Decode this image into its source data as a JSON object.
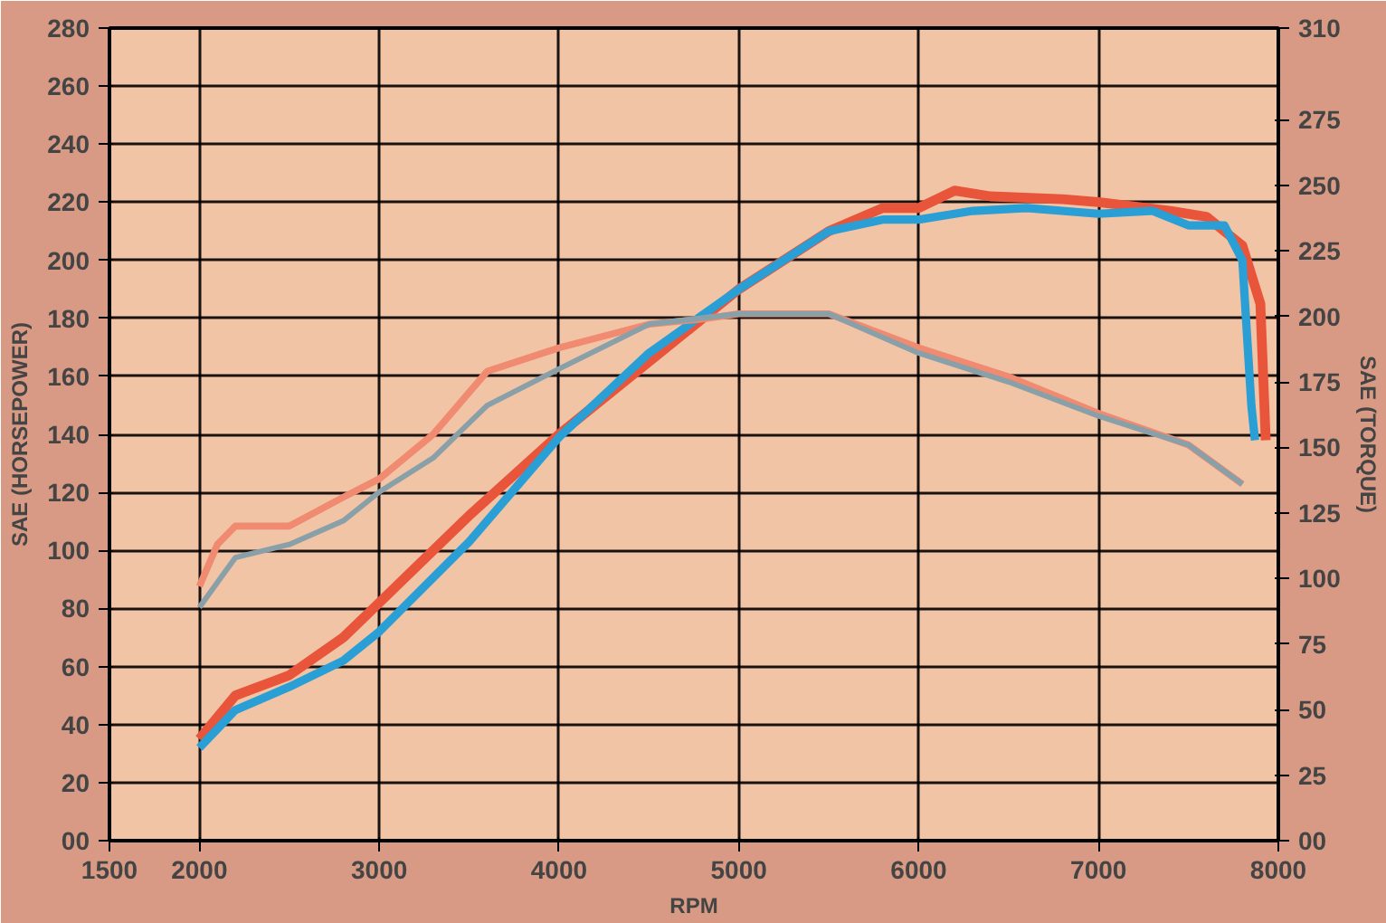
{
  "chart_data": {
    "type": "line",
    "xlabel": "RPM",
    "ylabel": "SAE (HORSEPOWER)",
    "y2label": "SAE (TORQUE)",
    "xlim": [
      1500,
      8000
    ],
    "xticks": [
      1500,
      2000,
      3000,
      4000,
      5000,
      6000,
      7000,
      8000
    ],
    "ylim": [
      0,
      280
    ],
    "yticks": [
      {
        "value": 0,
        "label": "00"
      },
      20,
      40,
      60,
      80,
      100,
      120,
      140,
      160,
      180,
      200,
      220,
      240,
      260,
      280
    ],
    "y2lim": [
      0,
      310
    ],
    "y2ticks": [
      {
        "value": 0,
        "label": "00"
      },
      25,
      50,
      75,
      100,
      125,
      150,
      175,
      200,
      225,
      250,
      275,
      310
    ],
    "grid": true,
    "line_style": "solid",
    "series": [
      {
        "color": "#e8553a",
        "x": [
          2000,
          2200,
          2500,
          2800,
          3000,
          3500,
          4000,
          4500,
          5000,
          5500,
          5800,
          6000,
          6200,
          6400,
          6800,
          7000,
          7400,
          7600,
          7800,
          7900,
          7930
        ],
        "values": [
          35,
          50,
          57,
          70,
          82,
          112,
          140,
          165,
          190,
          210,
          218,
          218,
          224,
          222,
          221,
          220,
          217,
          215,
          205,
          185,
          138
        ]
      },
      {
        "color": "#2a9fd6",
        "x": [
          2000,
          2200,
          2500,
          2800,
          3000,
          3500,
          4000,
          4500,
          5000,
          5500,
          5800,
          6000,
          6300,
          6600,
          7000,
          7300,
          7500,
          7700,
          7800,
          7850,
          7870
        ],
        "values": [
          32,
          45,
          53,
          62,
          72,
          103,
          139,
          168,
          190,
          210,
          214,
          214,
          217,
          218,
          216,
          217,
          212,
          212,
          200,
          150,
          138
        ]
      },
      {
        "color": "#f08a70",
        "axis": "y2",
        "x": [
          2000,
          2100,
          2200,
          2500,
          2800,
          3000,
          3300,
          3600,
          4000,
          4500,
          4800,
          5000,
          5500,
          6000,
          6500,
          7000,
          7500,
          7800
        ],
        "values": [
          97,
          113,
          120,
          120,
          131,
          138,
          155,
          179,
          188,
          197,
          199,
          201,
          201,
          188,
          177,
          163,
          151,
          136
        ]
      },
      {
        "color": "#8aa0a8",
        "axis": "y2",
        "x": [
          2000,
          2200,
          2500,
          2800,
          3000,
          3300,
          3600,
          4000,
          4500,
          5000,
          5500,
          6000,
          6500,
          7000,
          7500,
          7800
        ],
        "values": [
          89,
          108,
          113,
          122,
          133,
          146,
          166,
          180,
          197,
          201,
          201,
          186,
          175,
          162,
          151,
          136
        ]
      }
    ]
  }
}
